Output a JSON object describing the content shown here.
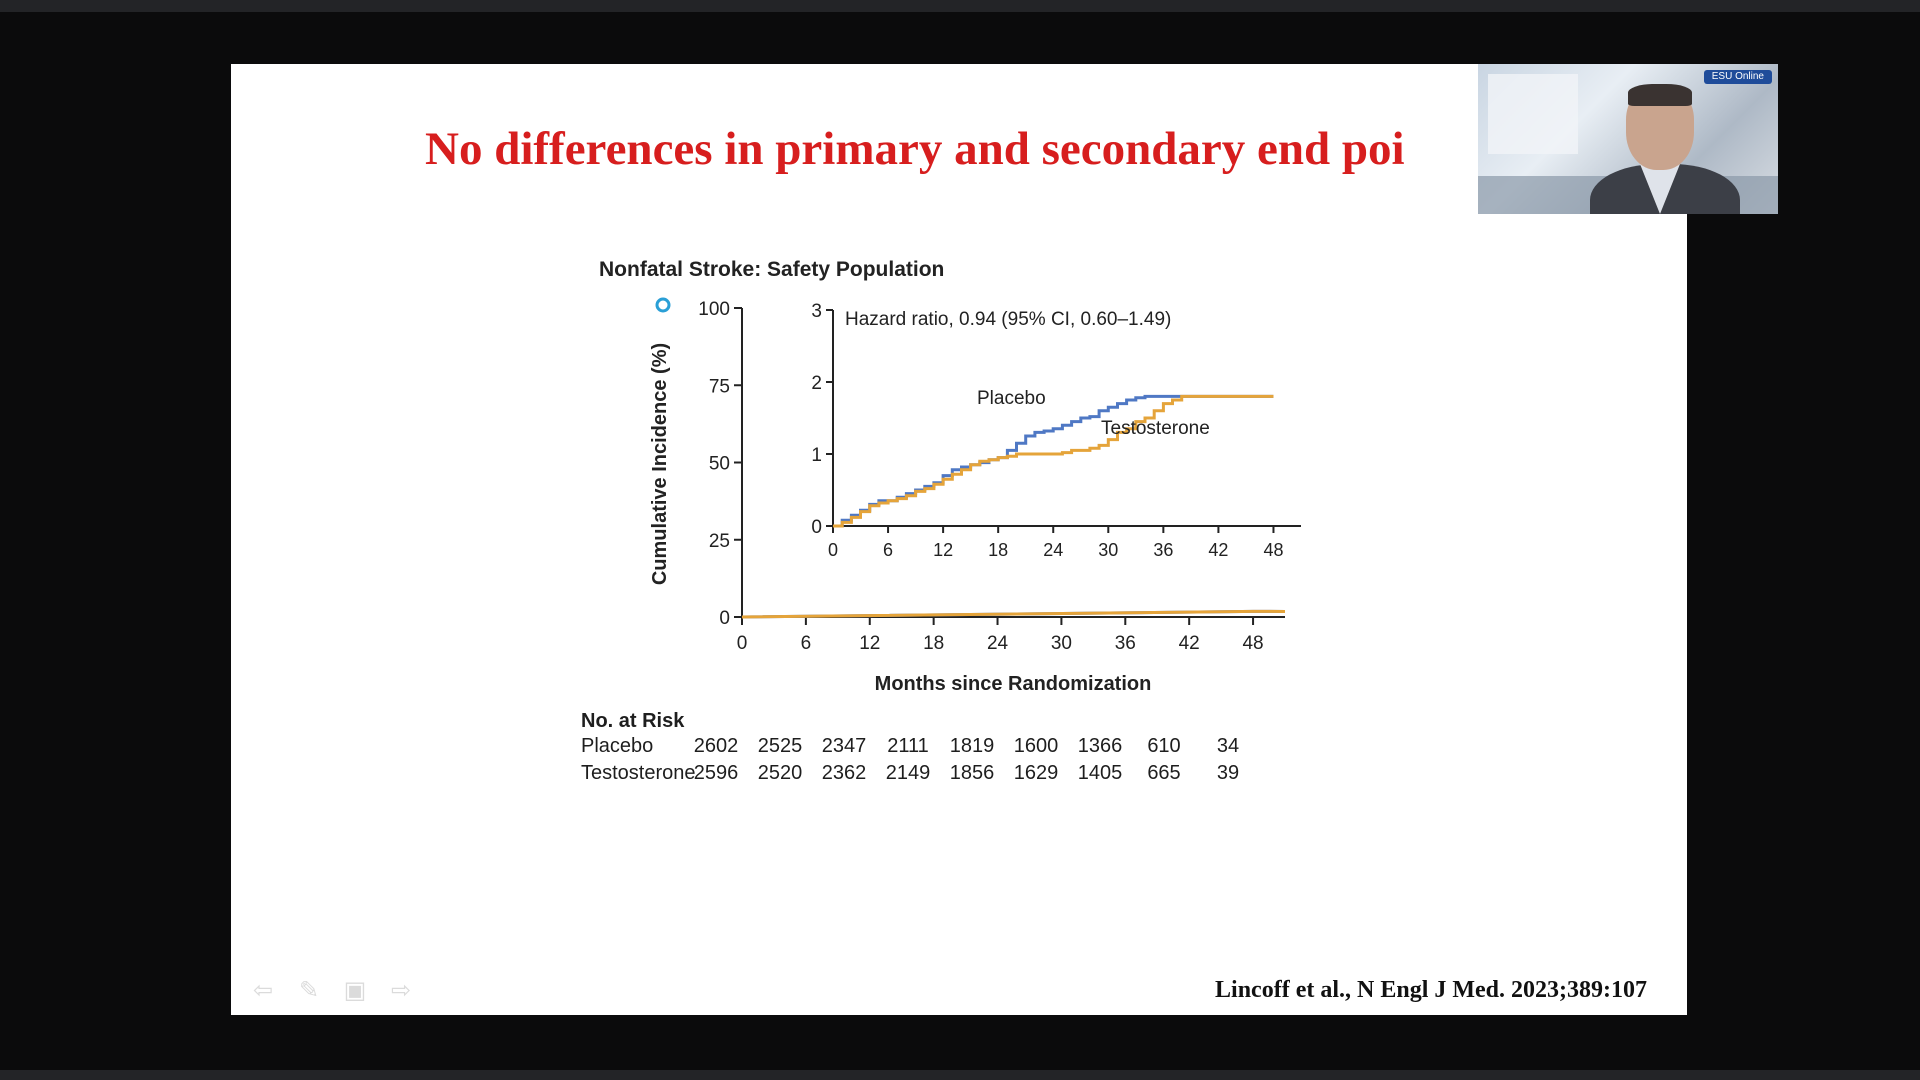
{
  "slide": {
    "title": "No differences in primary and secondary end poi",
    "citation": "Lincoff et al., N Engl J Med. 2023;389:107"
  },
  "webcam": {
    "badge": "ESU Online"
  },
  "nav_controls": [
    "arrow-left-icon",
    "pen-icon",
    "slides-icon",
    "arrow-right-icon"
  ],
  "colors": {
    "title": "#d71e1e",
    "placebo": "#4f78c4",
    "testosterone": "#e5a43a"
  },
  "chart_data": {
    "type": "line",
    "title": "Nonfatal Stroke: Safety Population",
    "xlabel": "Months since Randomization",
    "ylabel": "Cumulative Incidence (%)",
    "xlim": [
      0,
      51
    ],
    "ylim": [
      0,
      100
    ],
    "xticks": [
      0,
      6,
      12,
      18,
      24,
      30,
      36,
      42,
      48
    ],
    "yticks": [
      0,
      25,
      50,
      75,
      100
    ],
    "series": [
      {
        "name": "Placebo",
        "x": [
          0,
          48
        ],
        "y": [
          0,
          1.8
        ]
      },
      {
        "name": "Testosterone",
        "x": [
          0,
          48
        ],
        "y": [
          0,
          1.8
        ]
      }
    ],
    "inset": {
      "annotation": "Hazard ratio, 0.94 (95% CI, 0.60–1.49)",
      "xlim": [
        0,
        51
      ],
      "ylim": [
        0,
        3
      ],
      "xticks": [
        0,
        6,
        12,
        18,
        24,
        30,
        36,
        42,
        48
      ],
      "yticks": [
        0,
        1,
        2,
        3
      ],
      "series": [
        {
          "name": "Placebo",
          "x": [
            0,
            1,
            2,
            3,
            4,
            5,
            6,
            7,
            8,
            9,
            10,
            11,
            12,
            13,
            14,
            15,
            16,
            17,
            18,
            19,
            20,
            21,
            22,
            23,
            24,
            25,
            26,
            27,
            28,
            29,
            30,
            31,
            32,
            33,
            34,
            36,
            38,
            40,
            42,
            44,
            46,
            48
          ],
          "y": [
            0,
            0.08,
            0.15,
            0.22,
            0.3,
            0.35,
            0.35,
            0.4,
            0.45,
            0.5,
            0.55,
            0.6,
            0.7,
            0.78,
            0.82,
            0.85,
            0.88,
            0.92,
            0.95,
            1.05,
            1.15,
            1.25,
            1.3,
            1.32,
            1.35,
            1.4,
            1.45,
            1.5,
            1.52,
            1.6,
            1.65,
            1.7,
            1.75,
            1.78,
            1.8,
            1.8,
            1.8,
            1.8,
            1.8,
            1.8,
            1.8,
            1.8
          ]
        },
        {
          "name": "Testosterone",
          "x": [
            0,
            1,
            2,
            3,
            4,
            5,
            6,
            7,
            8,
            9,
            10,
            11,
            12,
            13,
            14,
            15,
            16,
            17,
            18,
            19,
            20,
            21,
            22,
            23,
            24,
            25,
            26,
            27,
            28,
            29,
            30,
            31,
            32,
            33,
            34,
            35,
            36,
            37,
            38,
            40,
            42,
            44,
            46,
            48
          ],
          "y": [
            0,
            0.05,
            0.12,
            0.2,
            0.28,
            0.32,
            0.35,
            0.38,
            0.42,
            0.48,
            0.52,
            0.58,
            0.65,
            0.72,
            0.78,
            0.85,
            0.9,
            0.92,
            0.95,
            0.97,
            1.0,
            1.0,
            1.0,
            1.0,
            1.0,
            1.02,
            1.05,
            1.05,
            1.08,
            1.12,
            1.2,
            1.3,
            1.35,
            1.45,
            1.5,
            1.6,
            1.7,
            1.75,
            1.8,
            1.8,
            1.8,
            1.8,
            1.8,
            1.8
          ]
        }
      ]
    },
    "risk_table": {
      "header": "No. at Risk",
      "columns": [
        0,
        6,
        12,
        18,
        24,
        30,
        36,
        42,
        48
      ],
      "rows": [
        {
          "label": "Placebo",
          "values": [
            "2602",
            "2525",
            "2347",
            "2111",
            "1819",
            "1600",
            "1366",
            "610",
            "34"
          ]
        },
        {
          "label": "Testosterone",
          "values": [
            "2596",
            "2520",
            "2362",
            "2149",
            "1856",
            "1629",
            "1405",
            "665",
            "39"
          ]
        }
      ]
    }
  }
}
